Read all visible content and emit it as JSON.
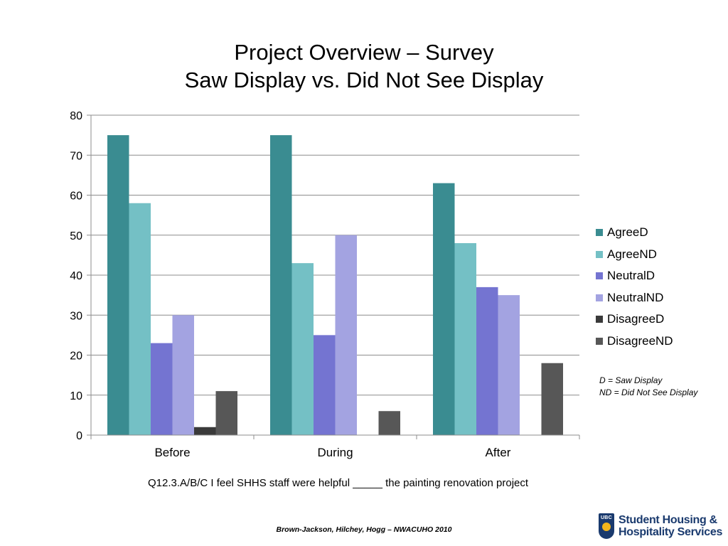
{
  "title_line1": "Project Overview – Survey",
  "title_line2": "Saw Display vs. Did Not See Display",
  "chart_data": {
    "type": "bar",
    "categories": [
      "Before",
      "During",
      "After"
    ],
    "series": [
      {
        "name": "AgreeD",
        "color": "#3a8c91",
        "values": [
          75,
          75,
          63
        ]
      },
      {
        "name": "AgreeND",
        "color": "#74c0c5",
        "values": [
          58,
          43,
          48
        ]
      },
      {
        "name": "NeutralD",
        "color": "#7474d1",
        "values": [
          23,
          25,
          37
        ]
      },
      {
        "name": "NeutralND",
        "color": "#a3a3e1",
        "values": [
          30,
          50,
          35
        ]
      },
      {
        "name": "DisagreeD",
        "color": "#3a3a3a",
        "values": [
          2,
          0,
          0
        ]
      },
      {
        "name": "DisagreeND",
        "color": "#575757",
        "values": [
          11,
          6,
          18
        ]
      }
    ],
    "ylim": [
      0,
      80
    ],
    "yticks": [
      0,
      10,
      20,
      30,
      40,
      50,
      60,
      70,
      80
    ],
    "grid": true,
    "legend_position": "right"
  },
  "note_line1": "D = Saw Display",
  "note_line2": "ND = Did Not See Display",
  "caption": "Q12.3.A/B/C I feel SHHS staff were helpful _____ the painting renovation project",
  "credit": "Brown-Jackson, Hilchey, Hogg – NWACUHO 2010",
  "logo": {
    "badge_text": "UBC",
    "line1": "Student Housing &",
    "line2": "Hospitality Services"
  }
}
